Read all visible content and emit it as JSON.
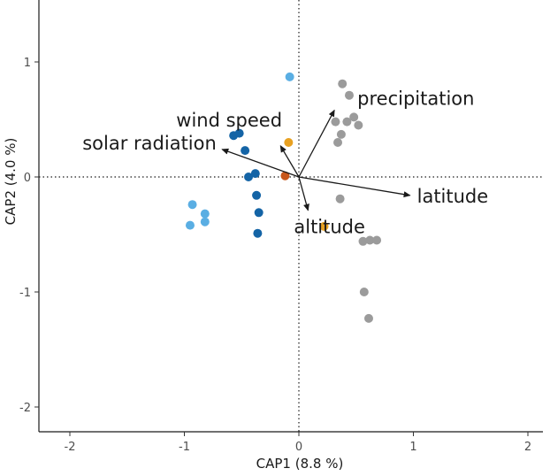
{
  "chart_data": {
    "type": "scatter",
    "title": "",
    "xlabel": "CAP1 (8.8 %)",
    "ylabel": "CAP2 (4.0 %)",
    "xlim": [
      -2.4,
      2.25
    ],
    "ylim": [
      -2.25,
      1.45
    ],
    "x_ticks": [
      {
        "value": -2,
        "label": "-2"
      },
      {
        "value": -1,
        "label": "-1"
      },
      {
        "value": 0,
        "label": "0"
      },
      {
        "value": 1,
        "label": "1"
      },
      {
        "value": 2,
        "label": "2"
      }
    ],
    "y_ticks": [
      {
        "value": -2,
        "label": "-2"
      },
      {
        "value": -1,
        "label": "-1"
      },
      {
        "value": 0,
        "label": "0"
      },
      {
        "value": 1,
        "label": "1"
      }
    ],
    "reference_lines": {
      "x": 0,
      "y": 0,
      "style": "dotted"
    },
    "grid": false,
    "series": [
      {
        "color": "#5aaee3",
        "points": [
          [
            -0.08,
            0.87
          ],
          [
            -0.93,
            -0.24
          ],
          [
            -0.82,
            -0.32
          ],
          [
            -0.95,
            -0.42
          ],
          [
            -0.82,
            -0.39
          ]
        ]
      },
      {
        "color": "#1464a6",
        "points": [
          [
            -0.57,
            0.36
          ],
          [
            -0.52,
            0.38
          ],
          [
            -0.47,
            0.23
          ],
          [
            -0.44,
            0.0
          ],
          [
            -0.38,
            0.03
          ],
          [
            -0.37,
            -0.16
          ],
          [
            -0.35,
            -0.31
          ],
          [
            -0.36,
            -0.49
          ]
        ]
      },
      {
        "color": "#e8a121",
        "points": [
          [
            -0.09,
            0.3
          ],
          [
            0.22,
            -0.43
          ]
        ]
      },
      {
        "color": "#c8561a",
        "points": [
          [
            -0.12,
            0.01
          ]
        ]
      },
      {
        "color": "#9b9b9b",
        "points": [
          [
            0.38,
            0.81
          ],
          [
            0.44,
            0.71
          ],
          [
            0.42,
            0.48
          ],
          [
            0.48,
            0.52
          ],
          [
            0.32,
            0.48
          ],
          [
            0.52,
            0.45
          ],
          [
            0.37,
            0.37
          ],
          [
            0.34,
            0.3
          ],
          [
            0.36,
            -0.19
          ],
          [
            0.56,
            -0.56
          ],
          [
            0.62,
            -0.55
          ],
          [
            0.68,
            -0.55
          ],
          [
            0.57,
            -1.0
          ],
          [
            0.61,
            -1.23
          ]
        ]
      }
    ],
    "vectors": [
      {
        "label": "precipitation",
        "x": 0.31,
        "y": 0.58
      },
      {
        "label": "wind speed",
        "x": -0.16,
        "y": 0.27
      },
      {
        "label": "solar radiation",
        "x": -0.67,
        "y": 0.24
      },
      {
        "label": "latitude",
        "x": 0.97,
        "y": -0.16
      },
      {
        "label": "altitude",
        "x": 0.08,
        "y": -0.29
      }
    ]
  }
}
